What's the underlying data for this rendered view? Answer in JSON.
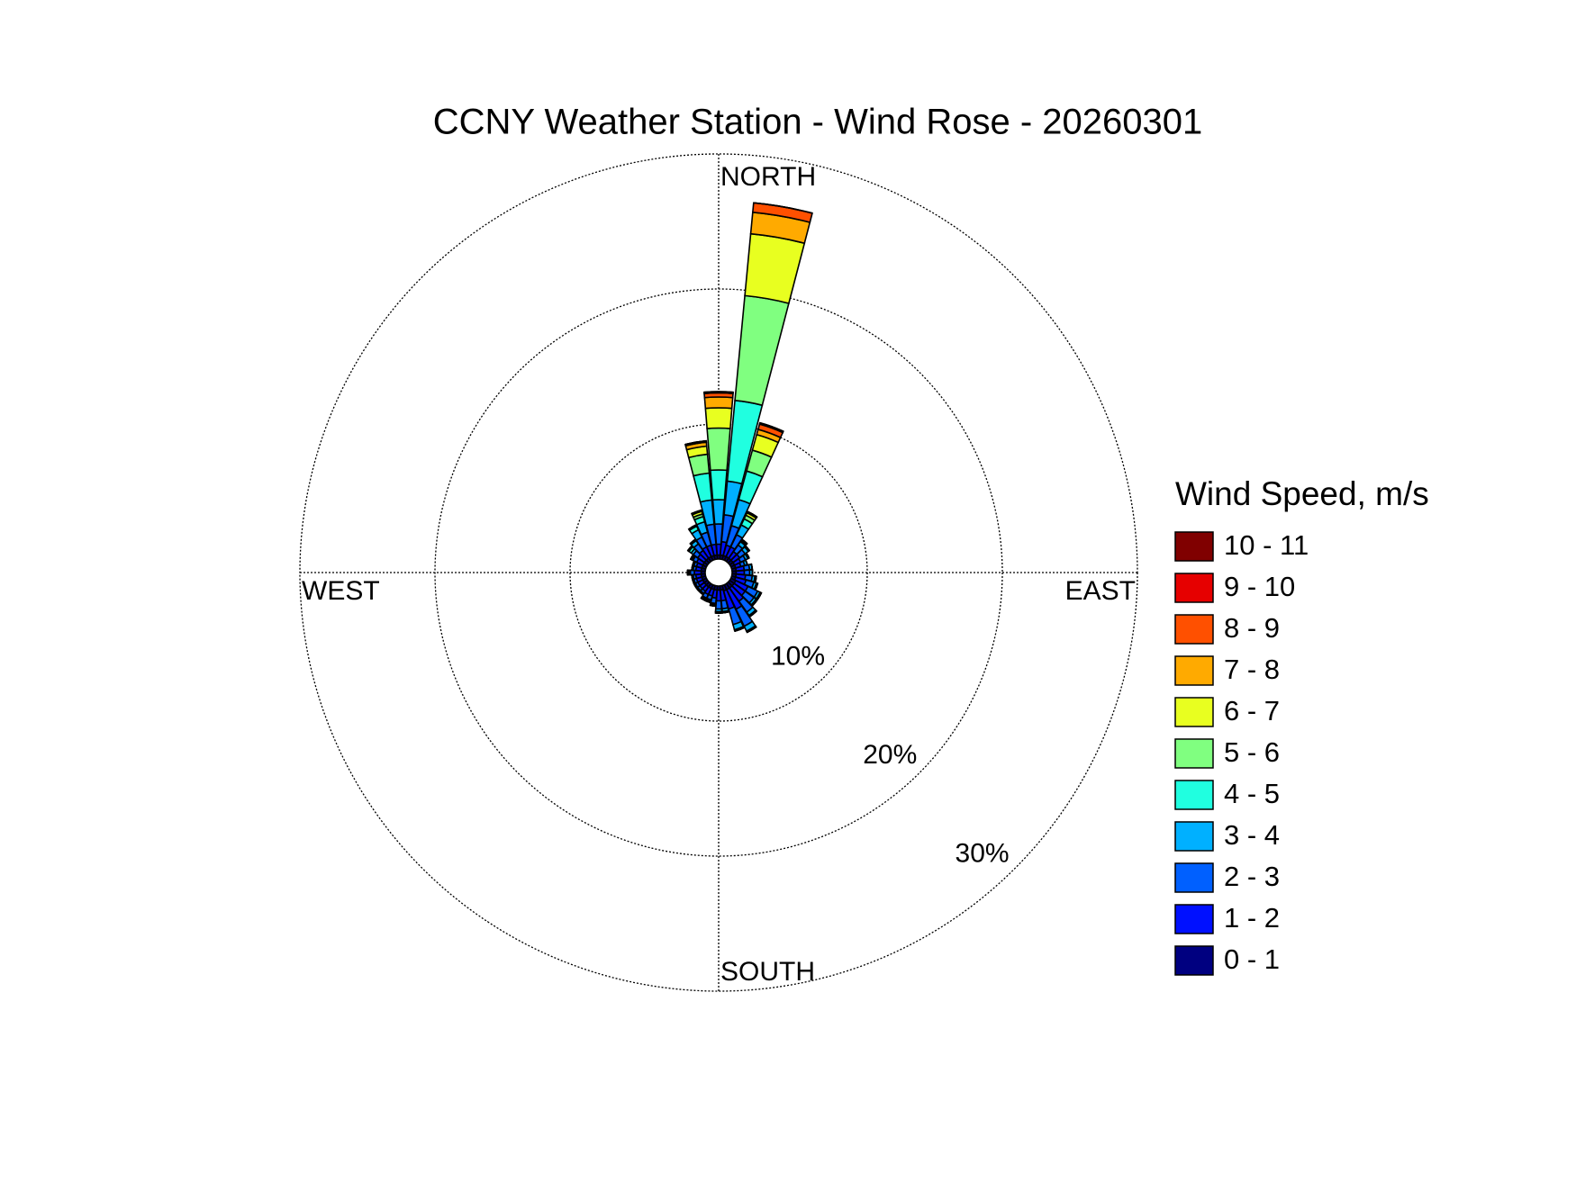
{
  "chart_data": {
    "type": "wind_rose",
    "title": "CCNY Weather Station - Wind Rose - 20260301",
    "legend_title": "Wind Speed, m/s",
    "direction_labels": [
      "NORTH",
      "EAST",
      "SOUTH",
      "WEST"
    ],
    "x": [
      0,
      10,
      20,
      30,
      40,
      50,
      60,
      70,
      80,
      90,
      100,
      110,
      120,
      130,
      140,
      150,
      160,
      170,
      180,
      190,
      200,
      210,
      220,
      230,
      240,
      250,
      260,
      270,
      280,
      290,
      300,
      310,
      320,
      330,
      340,
      350
    ],
    "rlim": [
      0,
      30
    ],
    "rticks": [
      {
        "value": 10,
        "label": "10%"
      },
      {
        "value": 20,
        "label": "20%"
      },
      {
        "value": 30,
        "label": "30%"
      }
    ],
    "grid": true,
    "series": [
      {
        "name": "0 - 1",
        "color": "#000080",
        "values": [
          0.3,
          0.3,
          0.3,
          0.3,
          0.3,
          0.3,
          0.3,
          0.3,
          0.3,
          0.3,
          0.3,
          0.3,
          0.4,
          0.4,
          0.4,
          0.4,
          0.4,
          0.3,
          0.3,
          0.3,
          0.3,
          0.3,
          0.3,
          0.3,
          0.3,
          0.3,
          0.3,
          0.3,
          0.3,
          0.3,
          0.3,
          0.3,
          0.3,
          0.3,
          0.3,
          0.3
        ]
      },
      {
        "name": "1 - 2",
        "color": "#0010ff",
        "values": [
          0.8,
          1.0,
          0.8,
          0.8,
          0.6,
          0.6,
          0.5,
          0.4,
          0.6,
          0.6,
          0.7,
          0.8,
          1.0,
          1.0,
          1.2,
          1.6,
          1.4,
          0.8,
          0.8,
          0.6,
          0.5,
          0.5,
          0.4,
          0.4,
          0.4,
          0.4,
          0.4,
          0.5,
          0.4,
          0.4,
          0.5,
          0.6,
          0.7,
          0.8,
          0.8,
          0.8
        ]
      },
      {
        "name": "2 - 3",
        "color": "#0060ff",
        "values": [
          1.5,
          2.0,
          1.5,
          1.0,
          0.6,
          0.5,
          0.4,
          0.3,
          0.4,
          0.4,
          0.5,
          0.6,
          0.8,
          0.8,
          1.0,
          1.4,
          1.2,
          0.6,
          0.6,
          0.4,
          0.3,
          0.3,
          0.2,
          0.2,
          0.2,
          0.2,
          0.2,
          0.3,
          0.2,
          0.2,
          0.3,
          0.4,
          0.6,
          0.8,
          1.0,
          1.5
        ]
      },
      {
        "name": "3 - 4",
        "color": "#00b0ff",
        "values": [
          1.8,
          2.5,
          2.0,
          0.8,
          0.3,
          0.3,
          0.2,
          0.2,
          0.2,
          0.2,
          0.2,
          0.2,
          0.2,
          0.2,
          0.3,
          0.4,
          0.4,
          0.2,
          0.2,
          0.1,
          0.1,
          0.1,
          0.1,
          0.1,
          0.1,
          0.1,
          0.1,
          0.1,
          0.1,
          0.1,
          0.1,
          0.2,
          0.3,
          0.6,
          0.8,
          1.8
        ]
      },
      {
        "name": "4 - 5",
        "color": "#20ffe0",
        "values": [
          2.2,
          6.0,
          2.2,
          0.5,
          0.1,
          0.1,
          0.1,
          0,
          0,
          0,
          0.1,
          0.1,
          0.1,
          0.1,
          0.1,
          0.1,
          0.1,
          0.1,
          0.1,
          0.1,
          0.1,
          0.1,
          0,
          0,
          0,
          0,
          0,
          0.1,
          0,
          0,
          0.1,
          0.2,
          0.1,
          0.3,
          0.4,
          2.0
        ]
      },
      {
        "name": "5 - 6",
        "color": "#80ff80",
        "values": [
          3.1,
          7.8,
          1.6,
          0.3,
          0.1,
          0,
          0,
          0,
          0,
          0,
          0,
          0,
          0,
          0,
          0,
          0,
          0,
          0,
          0,
          0,
          0,
          0,
          0,
          0,
          0,
          0,
          0,
          0,
          0,
          0,
          0,
          0.1,
          0,
          0.1,
          0.2,
          1.4
        ]
      },
      {
        "name": "6 - 7",
        "color": "#e8ff20",
        "values": [
          1.5,
          4.6,
          1.2,
          0.2,
          0,
          0,
          0,
          0,
          0,
          0,
          0,
          0,
          0,
          0,
          0,
          0,
          0,
          0,
          0,
          0,
          0,
          0,
          0,
          0,
          0,
          0,
          0,
          0,
          0,
          0,
          0,
          0,
          0,
          0,
          0.2,
          0.6
        ]
      },
      {
        "name": "7 - 8",
        "color": "#ffaa00",
        "values": [
          0.8,
          1.6,
          0.4,
          0.1,
          0,
          0,
          0,
          0,
          0,
          0,
          0,
          0,
          0,
          0,
          0,
          0,
          0,
          0,
          0,
          0,
          0,
          0,
          0,
          0,
          0,
          0,
          0,
          0,
          0,
          0,
          0,
          0,
          0,
          0,
          0.1,
          0.3
        ]
      },
      {
        "name": "8 - 9",
        "color": "#ff5000",
        "values": [
          0.3,
          0.7,
          0.4,
          0,
          0,
          0,
          0,
          0,
          0,
          0,
          0,
          0,
          0,
          0,
          0,
          0,
          0,
          0,
          0,
          0,
          0,
          0,
          0,
          0,
          0,
          0,
          0,
          0,
          0,
          0,
          0,
          0,
          0,
          0,
          0,
          0.1
        ]
      },
      {
        "name": "9 - 10",
        "color": "#e60000",
        "values": [
          0.1,
          0,
          0.1,
          0,
          0,
          0,
          0,
          0,
          0,
          0,
          0,
          0,
          0,
          0,
          0,
          0,
          0,
          0,
          0,
          0,
          0,
          0,
          0,
          0,
          0,
          0,
          0,
          0,
          0,
          0,
          0,
          0,
          0,
          0,
          0,
          0
        ]
      },
      {
        "name": "10 - 11",
        "color": "#800000",
        "values": [
          0,
          0,
          0,
          0,
          0,
          0,
          0,
          0,
          0,
          0,
          0,
          0,
          0,
          0,
          0,
          0,
          0,
          0,
          0,
          0,
          0,
          0,
          0,
          0,
          0,
          0,
          0,
          0,
          0,
          0,
          0,
          0,
          0,
          0,
          0,
          0
        ]
      }
    ]
  }
}
